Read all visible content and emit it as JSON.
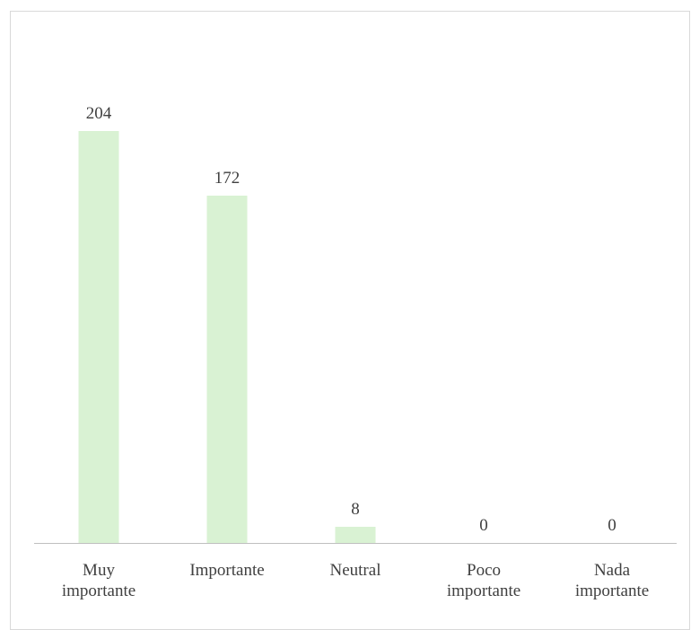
{
  "chart_data": {
    "type": "bar",
    "categories": [
      [
        "Muy",
        "importante"
      ],
      [
        "Importante"
      ],
      [
        "Neutral"
      ],
      [
        "Poco",
        "importante"
      ],
      [
        "Nada",
        "importante"
      ]
    ],
    "values": [
      204,
      172,
      8,
      0,
      0
    ],
    "data_labels": [
      "204",
      "172",
      "8",
      "0",
      "0"
    ],
    "title": "",
    "xlabel": "",
    "ylabel": "",
    "ylim": [
      0,
      204
    ],
    "grid": false,
    "legend": "none",
    "colors": {
      "bar": "#d9f2d3",
      "axis": "#bfbfbf",
      "text": "#404040",
      "frame": "#d9d9d9"
    }
  }
}
